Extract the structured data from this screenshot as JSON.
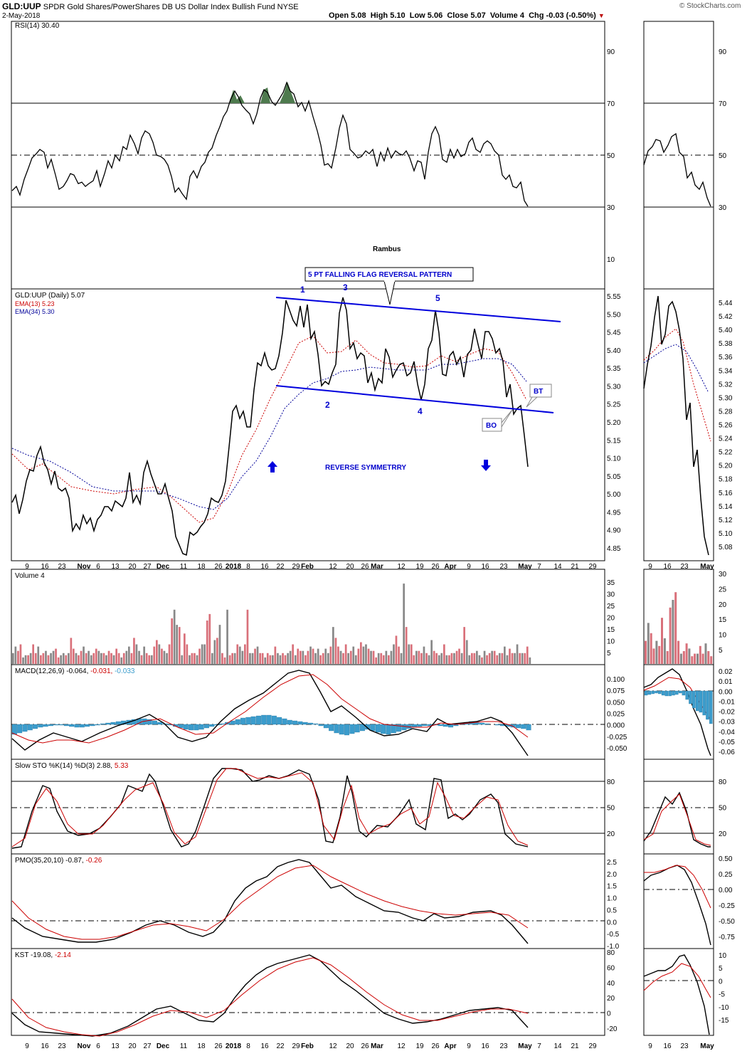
{
  "header": {
    "symbol": "GLD:UUP",
    "name": "SPDR Gold Shares/PowerShares DB US Dollar Index Bullish Fund",
    "exchange": "NYSE",
    "date": "2-May-2018",
    "open": "Open 5.08",
    "high": "High 5.10",
    "low": "Low 5.06",
    "close": "Close 5.07",
    "volume": "Volume 4",
    "chg": "Chg -0.03 (-0.50%)",
    "watermark": "© StockCharts.com"
  },
  "panels": {
    "rsi": {
      "label": "RSI(14) 30.40",
      "ticks": [
        "90",
        "70",
        "50",
        "30",
        "10"
      ],
      "author": "Rambus"
    },
    "price": {
      "label": "GLD:UUP (Daily) 5.07",
      "ema13": "EMA(13) 5.23",
      "ema34": "EMA(34) 5.30",
      "ticks": [
        "5.55",
        "5.50",
        "5.45",
        "5.40",
        "5.35",
        "5.30",
        "5.25",
        "5.20",
        "5.15",
        "5.10",
        "5.05",
        "5.00",
        "4.95",
        "4.90",
        "4.85"
      ],
      "right_ticks": [
        "5.44",
        "5.42",
        "5.40",
        "5.38",
        "5.36",
        "5.34",
        "5.32",
        "5.30",
        "5.28",
        "5.26",
        "5.24",
        "5.22",
        "5.20",
        "5.18",
        "5.16",
        "5.14",
        "5.12",
        "5.10",
        "5.08"
      ]
    },
    "volume": {
      "label": "Volume 4",
      "ticks": [
        "35",
        "30",
        "25",
        "20",
        "15",
        "10",
        "5"
      ],
      "right_ticks": [
        "30",
        "25",
        "20",
        "15",
        "10",
        "5"
      ]
    },
    "macd": {
      "label": "MACD(12,26,9) -0.064,",
      "v2": "-0.031,",
      "v3": "-0.033",
      "ticks": [
        "0.100",
        "0.075",
        "0.050",
        "0.025",
        "0.000",
        "-0.025",
        "-0.050"
      ],
      "right_ticks": [
        "0.02",
        "0.01",
        "0.00",
        "-0.01",
        "-0.02",
        "-0.03",
        "-0.04",
        "-0.05",
        "-0.06"
      ]
    },
    "sto": {
      "label": "Slow STO %K(14) %D(3) 2.88,",
      "v2": "5.33",
      "ticks": [
        "80",
        "50",
        "20"
      ]
    },
    "pmo": {
      "label": "PMO(35,20,10) -0.87,",
      "v2": "-0.26",
      "ticks": [
        "2.5",
        "2.0",
        "1.5",
        "1.0",
        "0.5",
        "0.0",
        "-0.5",
        "-1.0"
      ],
      "right_ticks": [
        "0.50",
        "0.25",
        "0.00",
        "-0.25",
        "-0.50",
        "-0.75"
      ]
    },
    "kst": {
      "label": "KST -19.08,",
      "v2": "-2.14",
      "ticks": [
        "80",
        "60",
        "40",
        "20",
        "0",
        "-20"
      ],
      "right_ticks": [
        "10",
        "5",
        "0",
        "-5",
        "-10",
        "-15"
      ]
    }
  },
  "annotations": {
    "pattern": "5 PT FALLING FLAG REVERSAL PATTERN",
    "points": [
      "1",
      "2",
      "3",
      "4",
      "5"
    ],
    "reverse": "REVERSE SYMMETRRY",
    "bo": "BO",
    "bt": "BT"
  },
  "x_axis": [
    "9",
    "16",
    "23",
    "Nov",
    "6",
    "13",
    "20",
    "27",
    "Dec",
    "11",
    "18",
    "26",
    "2018",
    "8",
    "16",
    "22",
    "29",
    "Feb",
    "12",
    "20",
    "26",
    "Mar",
    "12",
    "19",
    "26",
    "Apr",
    "9",
    "16",
    "23",
    "May",
    "7",
    "14",
    "21",
    "29"
  ],
  "x_axis_right": [
    "9",
    "16",
    "23",
    "May"
  ],
  "colors": {
    "price": "#000000",
    "ema13": "#cc0000",
    "ema34": "#000099",
    "trend": "#0000dd",
    "vol_up": "#d9707a",
    "vol_dn": "#888888",
    "macd_hist": "#3b9ccc"
  },
  "chart_data": {
    "type": "line",
    "title": "GLD:UUP",
    "series": [
      {
        "name": "GLD:UUP",
        "x": [
          "Oct 2",
          "Oct 16",
          "Nov 1",
          "Nov 13",
          "Dec 1",
          "Dec 12",
          "Dec 26",
          "Jan 8",
          "Jan 25",
          "Feb 6",
          "Feb 16",
          "Mar 1",
          "Mar 20",
          "Mar 27",
          "Apr 9",
          "Apr 20",
          "Apr 27",
          "May 2"
        ],
        "values": [
          4.97,
          5.12,
          4.9,
          5.08,
          5.01,
          4.84,
          4.96,
          5.2,
          5.55,
          5.28,
          5.56,
          5.38,
          5.25,
          5.51,
          5.34,
          5.45,
          5.2,
          5.07
        ]
      }
    ],
    "ylim": [
      4.83,
      5.57
    ]
  }
}
